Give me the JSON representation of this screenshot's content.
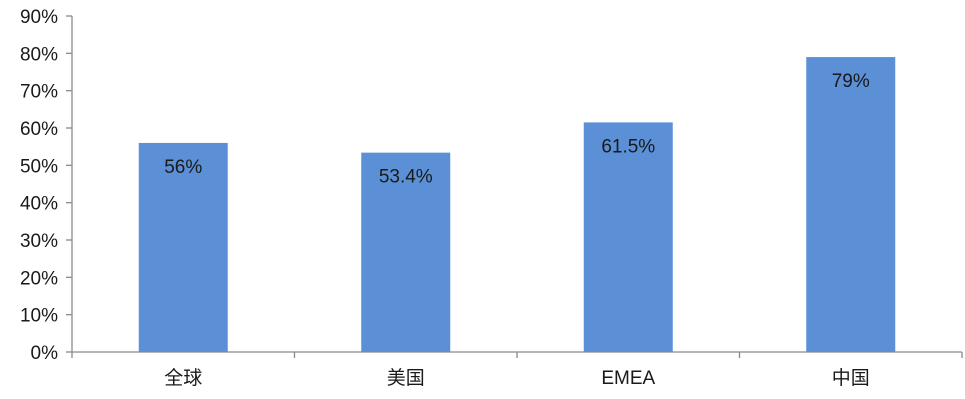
{
  "chart_data": {
    "type": "bar",
    "categories": [
      "全球",
      "美国",
      "EMEA",
      "中国"
    ],
    "values": [
      56,
      53.4,
      61.5,
      79
    ],
    "value_labels": [
      "56%",
      "53.4%",
      "61.5%",
      "79%"
    ],
    "y_ticks": [
      "0%",
      "10%",
      "20%",
      "30%",
      "40%",
      "50%",
      "60%",
      "70%",
      "80%",
      "90%"
    ],
    "ylim": [
      0,
      90
    ],
    "y_unit": "%",
    "title": "",
    "xlabel": "",
    "ylabel": "",
    "grid": false,
    "legend": "none",
    "colors": {
      "bar": "#5b8fd6",
      "axis": "#8a8a8a",
      "text": "#1a1a1a"
    }
  }
}
